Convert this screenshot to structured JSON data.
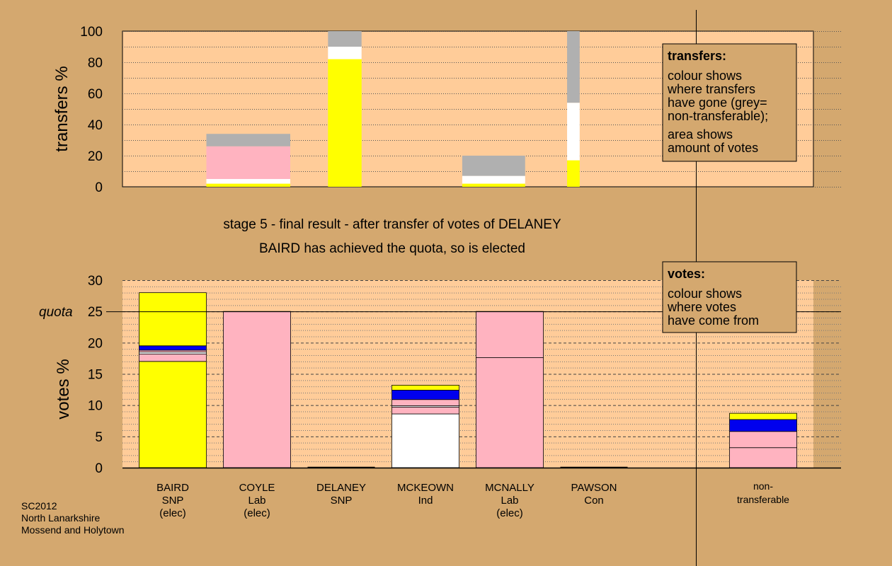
{
  "colors": {
    "background": "#d4a86f",
    "plot_bg": "#ffcc99",
    "snp": "#ffff00",
    "lab": "#ffb3c0",
    "ind": "#ffffff",
    "other": "#0000ee",
    "nontransferable": "#b0b0b0"
  },
  "header": {
    "stage_line": "stage 5 - final result - after transfer of votes of DELANEY",
    "status_line": "BAIRD has achieved the quota, so is elected"
  },
  "transfers_box": {
    "title": "transfers:",
    "lines1": [
      "colour shows",
      "where transfers",
      "have gone (grey=",
      "non-transferable);"
    ],
    "lines2": [
      "area shows",
      "amount of votes"
    ]
  },
  "votes_box": {
    "title": "votes:",
    "lines": [
      "colour shows",
      "where votes",
      "have come from"
    ]
  },
  "footer": {
    "lines": [
      "SC2012",
      "North Lanarkshire",
      "Mossend and Holytown"
    ]
  },
  "chart_data": [
    {
      "type": "bar",
      "ylabel": "transfers %",
      "ylim": [
        0,
        100
      ],
      "yticks": [
        "0",
        "20",
        "40",
        "60",
        "80",
        "100"
      ],
      "grid": "dotted",
      "bars": [
        {
          "x_start": 1,
          "x_end": 2,
          "segments": [
            {
              "color": "snp",
              "value": 2
            },
            {
              "color": "ind",
              "value": 3
            },
            {
              "color": "lab",
              "value": 21
            },
            {
              "color": "nontransferable",
              "value": 8
            }
          ]
        },
        {
          "x_start": 2.45,
          "x_end": 2.85,
          "segments": [
            {
              "color": "snp",
              "value": 82
            },
            {
              "color": "ind",
              "value": 8
            },
            {
              "color": "nontransferable",
              "value": 10
            }
          ]
        },
        {
          "x_start": 4.05,
          "x_end": 4.8,
          "segments": [
            {
              "color": "snp",
              "value": 2
            },
            {
              "color": "ind",
              "value": 5
            },
            {
              "color": "nontransferable",
              "value": 13
            }
          ]
        },
        {
          "x_start": 5.3,
          "x_end": 5.45,
          "segments": [
            {
              "color": "snp",
              "value": 17
            },
            {
              "color": "ind",
              "value": 37
            },
            {
              "color": "nontransferable",
              "value": 46
            }
          ]
        }
      ]
    },
    {
      "type": "bar",
      "ylabel": "votes %",
      "ylim": [
        0,
        30
      ],
      "yticks": [
        "0",
        "5",
        "10",
        "15",
        "20",
        "25",
        "30"
      ],
      "quota": 25,
      "quota_label": "quota",
      "grid": "dashed",
      "candidates": [
        {
          "name": "BAIRD",
          "party": "SNP",
          "status": "(elec)",
          "segments": [
            {
              "color": "snp",
              "value": 17
            },
            {
              "color": "lab",
              "value": 1.2
            },
            {
              "color": "ind",
              "value": 0.3
            },
            {
              "color": "lab",
              "value": 0.3
            },
            {
              "color": "other",
              "value": 0.7
            },
            {
              "color": "snp",
              "value": 8.5
            }
          ]
        },
        {
          "name": "COYLE",
          "party": "Lab",
          "status": "(elec)",
          "segments": [
            {
              "color": "lab",
              "value": 25
            }
          ]
        },
        {
          "name": "DELANEY",
          "party": "SNP",
          "status": "",
          "segments": []
        },
        {
          "name": "MCKEOWN",
          "party": "Ind",
          "status": "",
          "segments": [
            {
              "color": "ind",
              "value": 8.6
            },
            {
              "color": "lab",
              "value": 1.1
            },
            {
              "color": "ind",
              "value": 0.2
            },
            {
              "color": "lab",
              "value": 1.0
            },
            {
              "color": "other",
              "value": 1.5
            },
            {
              "color": "snp",
              "value": 0.8
            }
          ]
        },
        {
          "name": "MCNALLY",
          "party": "Lab",
          "status": "(elec)",
          "segments": [
            {
              "color": "lab",
              "value": 17.6
            },
            {
              "color": "lab",
              "value": 7.4
            }
          ]
        },
        {
          "name": "PAWSON",
          "party": "Con",
          "status": "",
          "segments": []
        }
      ],
      "nontransferable": {
        "label_lines": [
          "non-",
          "transferable"
        ],
        "segments": [
          {
            "color": "lab",
            "value": 3.2
          },
          {
            "color": "lab",
            "value": 2.6
          },
          {
            "color": "other",
            "value": 1.9
          },
          {
            "color": "snp",
            "value": 1.0
          }
        ]
      }
    }
  ]
}
